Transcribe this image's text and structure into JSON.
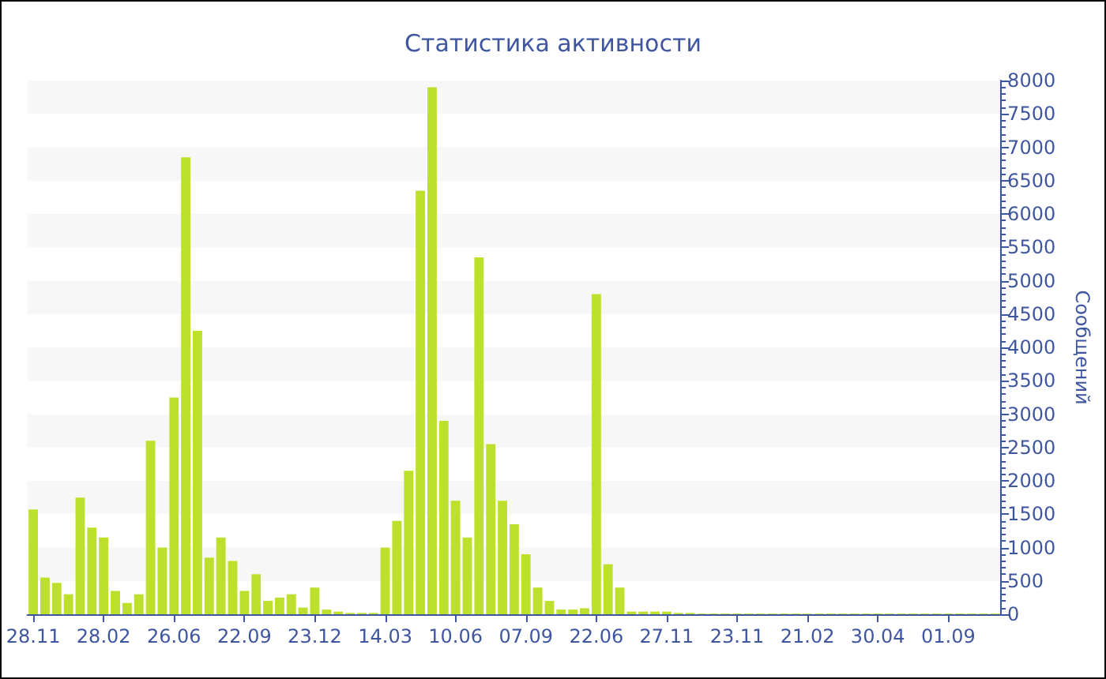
{
  "chart_data": {
    "type": "bar",
    "title": "Статистика активности",
    "ylabel": "Сообщений",
    "color": "#bde02c",
    "categories": [
      "28.11",
      null,
      null,
      null,
      null,
      null,
      "28.02",
      null,
      null,
      null,
      null,
      null,
      "26.06",
      null,
      null,
      null,
      null,
      null,
      "22.09",
      null,
      null,
      null,
      null,
      null,
      "23.12",
      null,
      null,
      null,
      null,
      null,
      "14.03",
      null,
      null,
      null,
      null,
      null,
      "10.06",
      null,
      null,
      null,
      null,
      null,
      "07.09",
      null,
      null,
      null,
      null,
      null,
      "22.06",
      null,
      null,
      null,
      null,
      null,
      "27.11",
      null,
      null,
      null,
      null,
      null,
      "23.11",
      null,
      null,
      null,
      null,
      null,
      "21.02",
      null,
      null,
      null,
      null,
      null,
      "30.04",
      null,
      null,
      null,
      null,
      null,
      "01.09",
      null,
      null,
      null,
      null
    ],
    "values": [
      1570,
      550,
      470,
      300,
      1750,
      1300,
      1150,
      350,
      170,
      300,
      2600,
      1000,
      3250,
      6850,
      4250,
      850,
      1150,
      800,
      350,
      600,
      200,
      250,
      300,
      100,
      400,
      70,
      40,
      20,
      20,
      20,
      1000,
      1400,
      2150,
      6350,
      7900,
      2900,
      1700,
      1150,
      5350,
      2550,
      1700,
      1350,
      900,
      400,
      200,
      70,
      70,
      90,
      4800,
      750,
      400,
      40,
      40,
      40,
      40,
      20,
      20,
      10,
      10,
      10,
      10,
      10,
      10,
      10,
      10,
      10,
      10,
      10,
      10,
      10,
      10,
      10,
      10,
      10,
      10,
      10,
      10,
      10,
      10,
      10,
      10,
      10,
      10
    ],
    "ylim": [
      0,
      8000
    ],
    "yticks": [
      0,
      500,
      1000,
      1500,
      2000,
      2500,
      3000,
      3500,
      4000,
      4500,
      5000,
      5500,
      6000,
      6500,
      7000,
      7500,
      8000
    ]
  }
}
